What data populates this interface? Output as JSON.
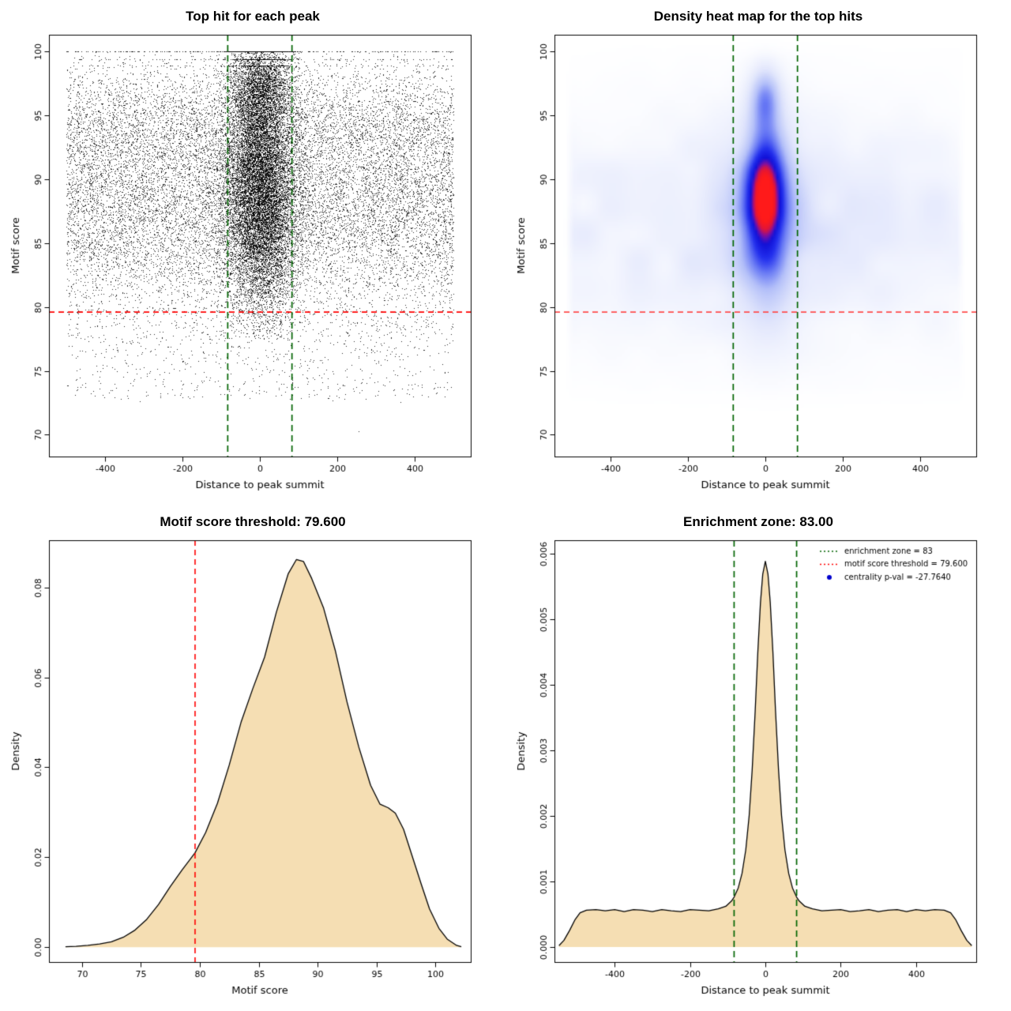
{
  "chart_data": [
    {
      "id": "top-hit-scatter",
      "type": "scatter",
      "title": "Top hit for each peak",
      "xlabel": "Distance to peak summit",
      "ylabel": "Motif score",
      "xlim": [
        -545,
        545
      ],
      "ylim": [
        68.3,
        101.3
      ],
      "xticks": [
        -400,
        -200,
        0,
        200,
        400
      ],
      "xtick_labels": [
        "-400",
        "-200",
        "0",
        "200",
        "400"
      ],
      "yticks": [
        70,
        75,
        80,
        85,
        90,
        95,
        100
      ],
      "ytick_labels": [
        "70",
        "75",
        "80",
        "85",
        "90",
        "95",
        "100"
      ],
      "point_color": "#000000",
      "threshold_line": {
        "y": 79.6,
        "color": "#ff0000"
      },
      "zone_lines": {
        "x": [
          -83,
          83
        ],
        "color": "#006400"
      },
      "seed": 1234,
      "distribution": {
        "background": {
          "n": 16000,
          "x_range": [
            -500,
            500
          ],
          "y_mixture": [
            {
              "w": 0.78,
              "mean": 88,
              "sd": 4.4
            },
            {
              "w": 0.22,
              "mean": 94.8,
              "sd": 2.3
            }
          ],
          "y_clip": [
            72.5,
            100
          ]
        },
        "low_tail": {
          "n": 650,
          "x_range": [
            -500,
            500
          ],
          "y_range": [
            72.8,
            80
          ]
        },
        "cluster": {
          "n": 12500,
          "x_sd": 45,
          "x_clip": 175,
          "y_mean": 89,
          "y_sd": 4.8,
          "y_clip": [
            77.5,
            100
          ]
        },
        "cluster_top": {
          "n": 2600,
          "x_sd": 40,
          "y_mean": 97,
          "y_sd": 1.7
        },
        "stripes": [
          {
            "y": 100,
            "n_center": 950,
            "n_wide": 200
          },
          {
            "y": 99.4,
            "n_center": 280,
            "n_wide": 70
          },
          {
            "y": 98.9,
            "n_center": 170,
            "n_wide": 50
          }
        ],
        "outliers": [
          [
            255,
            70.3
          ],
          [
            -310,
            72.6
          ],
          [
            418,
            73.1
          ]
        ]
      }
    },
    {
      "id": "top-hit-heatmap",
      "type": "heatmap",
      "title": "Density heat map for the top hits",
      "xlabel": "Distance to peak summit",
      "ylabel": "Motif score",
      "xlim": [
        -545,
        545
      ],
      "ylim": [
        68.3,
        101.3
      ],
      "xticks": [
        -400,
        -200,
        0,
        200,
        400
      ],
      "xtick_labels": [
        "-400",
        "-200",
        "0",
        "200",
        "400"
      ],
      "yticks": [
        70,
        75,
        80,
        85,
        90,
        95,
        100
      ],
      "ytick_labels": [
        "70",
        "75",
        "80",
        "85",
        "90",
        "95",
        "100"
      ],
      "threshold_line": {
        "y": 79.6,
        "color": "#ff4d4d"
      },
      "zone_lines": {
        "x": [
          -83,
          83
        ],
        "color": "#006400"
      },
      "band": {
        "amp": 0.16,
        "center": 86,
        "sigma": 8
      },
      "blobs": [
        {
          "amp": 1.0,
          "sx": 52,
          "cy": 89,
          "sy": 5.0
        },
        {
          "amp": 0.55,
          "sx": 38,
          "cy": 96.3,
          "sy": 2.3
        },
        {
          "amp": 0.38,
          "sx": 85,
          "cy": 85.5,
          "sy": 7.0
        },
        {
          "amp": 0.1,
          "sx": 260,
          "cy": 87,
          "sy": 8.0
        }
      ],
      "vmax": 1.42,
      "colormap": [
        [
          0,
          "#ffffff"
        ],
        [
          0.07,
          "#f4f6fe"
        ],
        [
          0.2,
          "#e0e5fc"
        ],
        [
          0.38,
          "#b4c0f9"
        ],
        [
          0.54,
          "#6b7cf5"
        ],
        [
          0.68,
          "#2330ee"
        ],
        [
          0.79,
          "#1111d8"
        ],
        [
          0.86,
          "#7a0fa8"
        ],
        [
          0.92,
          "#e0153a"
        ],
        [
          1,
          "#ff1a1a"
        ]
      ]
    },
    {
      "id": "motif-score-density",
      "type": "area",
      "title": "Motif score threshold: 79.600",
      "xlabel": "Motif score",
      "ylabel": "Density",
      "xlim": [
        67.2,
        103
      ],
      "ylim": [
        -0.0033,
        0.0905
      ],
      "xticks": [
        70,
        75,
        80,
        85,
        90,
        95,
        100
      ],
      "xtick_labels": [
        "70",
        "75",
        "80",
        "85",
        "90",
        "95",
        "100"
      ],
      "yticks": [
        0,
        0.02,
        0.04,
        0.06,
        0.08
      ],
      "ytick_labels": [
        "0.00",
        "0.02",
        "0.04",
        "0.06",
        "0.08"
      ],
      "fill": "#f5deb3",
      "stroke": "#000000",
      "threshold_line": {
        "x": 79.6,
        "color": "#ff0000"
      },
      "points": [
        [
          68.6,
          0.0001
        ],
        [
          69.5,
          0.0002
        ],
        [
          70.5,
          0.0004
        ],
        [
          71.5,
          0.0007
        ],
        [
          72.5,
          0.0012
        ],
        [
          73.5,
          0.0022
        ],
        [
          74.5,
          0.0038
        ],
        [
          75.5,
          0.0062
        ],
        [
          76.5,
          0.0095
        ],
        [
          77.5,
          0.0135
        ],
        [
          78.5,
          0.0172
        ],
        [
          79.2,
          0.0196
        ],
        [
          79.6,
          0.021
        ],
        [
          80.5,
          0.0255
        ],
        [
          81.5,
          0.032
        ],
        [
          82.5,
          0.0405
        ],
        [
          83.5,
          0.05
        ],
        [
          84.5,
          0.0575
        ],
        [
          85.5,
          0.0645
        ],
        [
          86.5,
          0.0745
        ],
        [
          87.5,
          0.083
        ],
        [
          88.2,
          0.0862
        ],
        [
          88.8,
          0.0858
        ],
        [
          89.5,
          0.082
        ],
        [
          90.5,
          0.0755
        ],
        [
          91.5,
          0.066
        ],
        [
          92.5,
          0.0545
        ],
        [
          93.5,
          0.0445
        ],
        [
          94.5,
          0.036
        ],
        [
          95.3,
          0.0318
        ],
        [
          96,
          0.031
        ],
        [
          96.6,
          0.0298
        ],
        [
          97.3,
          0.0262
        ],
        [
          98,
          0.0205
        ],
        [
          98.8,
          0.014
        ],
        [
          99.5,
          0.0085
        ],
        [
          100.3,
          0.0042
        ],
        [
          101,
          0.0018
        ],
        [
          101.8,
          0.0004
        ],
        [
          102.2,
          0.0001
        ]
      ]
    },
    {
      "id": "distance-density",
      "type": "area",
      "title": "Enrichment zone: 83.00",
      "xlabel": "Distance to peak summit",
      "ylabel": "Density",
      "xlim": [
        -560,
        560
      ],
      "ylim": [
        -0.00023,
        0.0062
      ],
      "xticks": [
        -400,
        -200,
        0,
        200,
        400
      ],
      "xtick_labels": [
        "-400",
        "-200",
        "0",
        "200",
        "400"
      ],
      "yticks": [
        0,
        0.001,
        0.002,
        0.003,
        0.004,
        0.005,
        0.006
      ],
      "ytick_labels": [
        "0.000",
        "0.001",
        "0.002",
        "0.003",
        "0.004",
        "0.005",
        "0.006"
      ],
      "fill": "#f5deb3",
      "stroke": "#000000",
      "zone_lines": {
        "x": [
          -83,
          83
        ],
        "color": "#006400"
      },
      "legend": {
        "entries": [
          {
            "type": "line",
            "color": "#006400",
            "label": "enrichment zone = 83"
          },
          {
            "type": "line",
            "color": "#ff0000",
            "label": "motif score threshold = 79.600"
          },
          {
            "type": "point",
            "color": "#0000cd",
            "label": "centrality p-val = -27.7640"
          }
        ]
      },
      "points": [
        [
          -548,
          2e-05
        ],
        [
          -535,
          0.0001
        ],
        [
          -520,
          0.00025
        ],
        [
          -505,
          0.00042
        ],
        [
          -492,
          0.00052
        ],
        [
          -475,
          0.00056
        ],
        [
          -450,
          0.00057
        ],
        [
          -425,
          0.00055
        ],
        [
          -400,
          0.00057
        ],
        [
          -375,
          0.00054
        ],
        [
          -350,
          0.00057
        ],
        [
          -325,
          0.00056
        ],
        [
          -300,
          0.00054
        ],
        [
          -275,
          0.00057
        ],
        [
          -250,
          0.00055
        ],
        [
          -225,
          0.00054
        ],
        [
          -200,
          0.00057
        ],
        [
          -175,
          0.00056
        ],
        [
          -150,
          0.00055
        ],
        [
          -125,
          0.00058
        ],
        [
          -105,
          0.00062
        ],
        [
          -90,
          0.0007
        ],
        [
          -83,
          0.00076
        ],
        [
          -72,
          0.0009
        ],
        [
          -62,
          0.00112
        ],
        [
          -52,
          0.00148
        ],
        [
          -43,
          0.002
        ],
        [
          -35,
          0.0027
        ],
        [
          -27,
          0.0036
        ],
        [
          -20,
          0.0045
        ],
        [
          -13,
          0.00525
        ],
        [
          -7,
          0.00568
        ],
        [
          0,
          0.00588
        ],
        [
          7,
          0.00568
        ],
        [
          13,
          0.00525
        ],
        [
          20,
          0.0045
        ],
        [
          27,
          0.0036
        ],
        [
          35,
          0.0027
        ],
        [
          43,
          0.002
        ],
        [
          52,
          0.00148
        ],
        [
          62,
          0.00112
        ],
        [
          72,
          0.0009
        ],
        [
          83,
          0.00076
        ],
        [
          90,
          0.0007
        ],
        [
          105,
          0.00062
        ],
        [
          125,
          0.00058
        ],
        [
          150,
          0.00055
        ],
        [
          175,
          0.00056
        ],
        [
          200,
          0.00057
        ],
        [
          225,
          0.00054
        ],
        [
          250,
          0.00055
        ],
        [
          275,
          0.00057
        ],
        [
          300,
          0.00054
        ],
        [
          325,
          0.00056
        ],
        [
          350,
          0.00057
        ],
        [
          375,
          0.00054
        ],
        [
          400,
          0.00057
        ],
        [
          425,
          0.00055
        ],
        [
          450,
          0.00057
        ],
        [
          475,
          0.00056
        ],
        [
          492,
          0.00052
        ],
        [
          505,
          0.00042
        ],
        [
          520,
          0.00025
        ],
        [
          535,
          0.0001
        ],
        [
          548,
          2e-05
        ]
      ]
    }
  ]
}
